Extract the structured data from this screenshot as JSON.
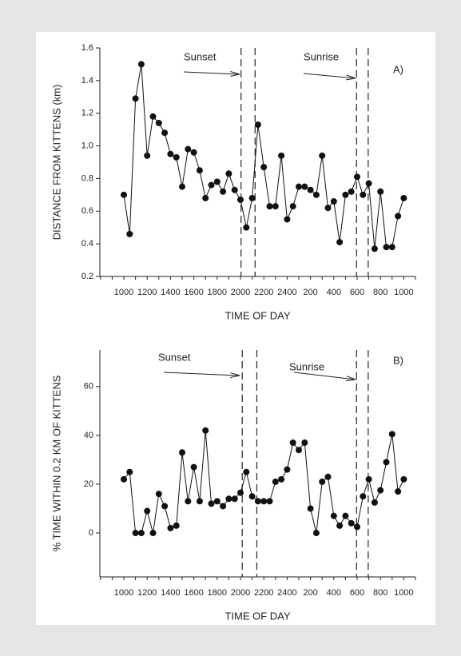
{
  "chart_data": [
    {
      "type": "line",
      "panel": "A)",
      "ylabel": "DISTANCE FROM KITTENS (km)",
      "xlabel": "TIME OF DAY",
      "annotations": [
        "Sunset",
        "Sunrise"
      ],
      "color": "#111111",
      "categories": [
        "1000",
        null,
        null,
        null,
        "1200",
        null,
        null,
        null,
        "1400",
        null,
        null,
        null,
        "1600",
        null,
        null,
        null,
        "1800",
        null,
        null,
        null,
        "2000",
        null,
        null,
        null,
        "2200",
        null,
        null,
        null,
        "2400",
        null,
        null,
        null,
        "200",
        null,
        null,
        null,
        "400",
        null,
        null,
        null,
        "600",
        null,
        null,
        null,
        "800",
        null,
        null,
        null,
        "1000"
      ],
      "values": [
        0.7,
        0.46,
        1.29,
        1.5,
        0.94,
        1.18,
        1.14,
        1.08,
        0.95,
        0.93,
        0.75,
        0.98,
        0.96,
        0.85,
        0.68,
        0.76,
        0.78,
        0.72,
        0.83,
        0.73,
        0.67,
        0.5,
        0.68,
        1.13,
        0.87,
        0.63,
        0.63,
        0.94,
        0.55,
        0.63,
        0.75,
        0.75,
        0.73,
        0.7,
        0.94,
        0.62,
        0.66,
        0.41,
        0.7,
        0.72,
        0.81,
        0.7,
        0.77,
        0.37,
        0.72,
        0.38,
        0.38,
        0.57,
        0.68
      ],
      "ylim": [
        0.2,
        1.6
      ],
      "yticks": [
        0.2,
        0.4,
        0.6,
        0.8,
        {
          "value": 1,
          "label": "1.0"
        },
        1.2,
        1.4,
        1.6
      ]
    },
    {
      "type": "line",
      "panel": "B)",
      "ylabel": "% TIME WITHIN 0.2 KM OF KITTENS",
      "xlabel": "TIME OF DAY",
      "annotations": [
        "Sunset",
        "Sunrise"
      ],
      "color": "#111111",
      "categories": [
        "1000",
        null,
        null,
        null,
        "1200",
        null,
        null,
        null,
        "1400",
        null,
        null,
        null,
        "1600",
        null,
        null,
        null,
        "1800",
        null,
        null,
        null,
        "2000",
        null,
        null,
        null,
        "2200",
        null,
        null,
        null,
        "2400",
        null,
        null,
        null,
        "200",
        null,
        null,
        null,
        "400",
        null,
        null,
        null,
        "600",
        null,
        null,
        null,
        "800",
        null,
        null,
        null,
        "1000"
      ],
      "values": [
        22,
        25,
        0,
        0,
        9,
        0,
        16,
        11,
        2,
        3,
        33,
        13,
        27,
        13,
        42,
        12,
        13,
        11,
        14,
        14,
        16.5,
        25,
        15,
        13,
        13,
        13,
        21,
        22,
        26,
        37,
        34,
        37,
        10,
        0,
        21,
        23,
        7,
        3,
        7,
        4,
        2.5,
        15,
        22,
        12.5,
        17.5,
        29,
        40.5,
        17,
        22
      ],
      "ylim": [
        -18,
        75
      ],
      "yticks": [
        0,
        20,
        40,
        60
      ]
    }
  ]
}
